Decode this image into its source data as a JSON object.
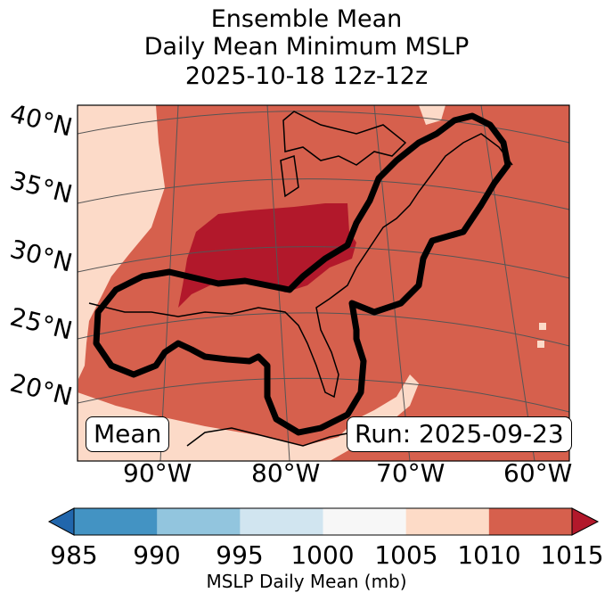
{
  "title": {
    "line1": "Ensemble Mean",
    "line2": "Daily Mean Minimum MSLP",
    "line3": "2025-10-18 12z-12z"
  },
  "map": {
    "lat_labels": [
      "40°N",
      "35°N",
      "30°N",
      "25°N",
      "20°N"
    ],
    "lon_labels": [
      "90°W",
      "80°W",
      "70°W",
      "60°W"
    ],
    "left_box": "Mean",
    "right_box": "Run: 2025-09-23",
    "region_colors": {
      "1005-1010": "#fcdac8",
      "1010-1015": "#d6604d",
      ">1015": "#b2182b"
    }
  },
  "colorbar": {
    "ticks": [
      "985",
      "990",
      "995",
      "1000",
      "1005",
      "1010",
      "1015"
    ],
    "colors": [
      "#2166ac",
      "#4393c3",
      "#92c5de",
      "#d1e5f0",
      "#f7f7f7",
      "#fddbc7",
      "#d6604d",
      "#b2182b"
    ],
    "label": "MSLP Daily Mean (mb)"
  }
}
